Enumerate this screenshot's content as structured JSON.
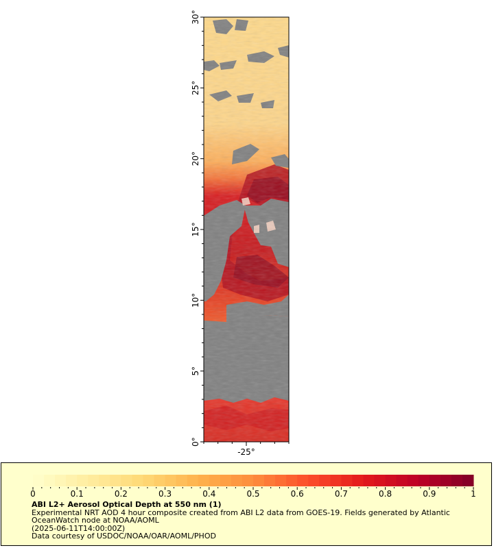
{
  "map": {
    "y_axis": {
      "ticks": [
        {
          "value": 30,
          "label": "30°"
        },
        {
          "value": 25,
          "label": "25°"
        },
        {
          "value": 20,
          "label": "20°"
        },
        {
          "value": 15,
          "label": "15°"
        },
        {
          "value": 10,
          "label": "10°"
        },
        {
          "value": 5,
          "label": "5°"
        },
        {
          "value": 0,
          "label": "0°"
        }
      ],
      "range": [
        0,
        30
      ]
    },
    "x_axis": {
      "ticks": [
        {
          "value": -25,
          "label": "-25°"
        }
      ],
      "range": [
        -28,
        -22
      ]
    },
    "nodata_color": "#808080"
  },
  "legend": {
    "range": [
      0,
      1
    ],
    "labels": [
      "0",
      "0.1",
      "0.2",
      "0.3",
      "0.4",
      "0.5",
      "0.6",
      "0.7",
      "0.8",
      "0.9",
      "1"
    ],
    "colors": [
      "#ffffcc",
      "#ffeda0",
      "#fed976",
      "#feb24c",
      "#fd8d3c",
      "#fc4e2a",
      "#e31a1c",
      "#bd0026",
      "#800026"
    ]
  },
  "caption": {
    "title": "ABI L2+ Aerosol Optical Depth at 550 nm (1)",
    "line1": "Experimental NRT AOD 4 hour composite created from ABI L2 data from GOES-19. Fields generated by Atlantic OceanWatch node at NOAA/AOML",
    "line2": "(2025-06-11T14:00:00Z)",
    "line3": "Data courtesy of USDOC/NOAA/OAR/AOML/PHOD"
  }
}
